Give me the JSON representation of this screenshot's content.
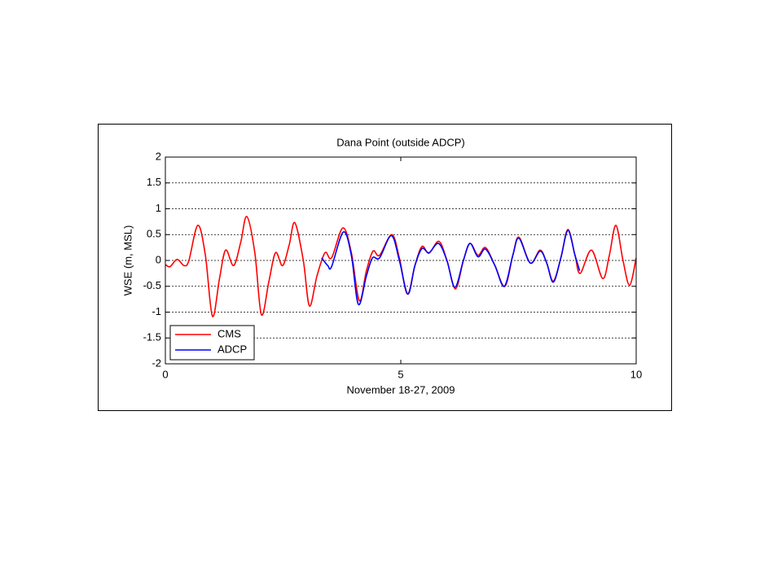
{
  "chart_data": {
    "type": "line",
    "title": "Dana Point (outside ADCP)",
    "x_label": "November 18-27, 2009",
    "y_label": "WSE (m, MSL)",
    "xlim": [
      0,
      10
    ],
    "xticks": [
      0,
      5,
      10
    ],
    "ylim": [
      -2,
      2
    ],
    "yticks": [
      -2,
      -1.5,
      -1,
      -0.5,
      0,
      0.5,
      1,
      1.5,
      2
    ],
    "grid": true,
    "legend": "lower left",
    "series": [
      {
        "name": "CMS",
        "color": "#ff0000",
        "x": [
          0,
          0.1,
          0.25,
          0.4,
          0.5,
          0.69,
          0.85,
          1.0,
          1.15,
          1.28,
          1.45,
          1.6,
          1.73,
          1.9,
          2.04,
          2.2,
          2.34,
          2.49,
          2.63,
          2.75,
          2.93,
          3.06,
          3.22,
          3.39,
          3.53,
          3.77,
          3.95,
          4.12,
          4.27,
          4.41,
          4.55,
          4.81,
          4.97,
          5.14,
          5.3,
          5.45,
          5.6,
          5.81,
          5.98,
          6.16,
          6.33,
          6.47,
          6.64,
          6.8,
          7.0,
          7.21,
          7.38,
          7.51,
          7.75,
          7.96,
          8.1,
          8.24,
          8.4,
          8.55,
          8.7,
          8.81,
          9.05,
          9.29,
          9.43,
          9.57,
          9.72,
          9.86,
          10
        ],
        "values": [
          -0.08,
          -0.12,
          0.02,
          -0.1,
          0.0,
          0.68,
          0.1,
          -1.08,
          -0.35,
          0.2,
          -0.1,
          0.35,
          0.85,
          0.15,
          -1.05,
          -0.4,
          0.15,
          -0.1,
          0.3,
          0.73,
          0.0,
          -0.88,
          -0.3,
          0.15,
          0.05,
          0.63,
          0.15,
          -0.78,
          -0.2,
          0.18,
          0.1,
          0.5,
          0.05,
          -0.65,
          -0.1,
          0.27,
          0.14,
          0.37,
          0.0,
          -0.55,
          0.0,
          0.33,
          0.1,
          0.25,
          -0.1,
          -0.5,
          0.1,
          0.45,
          -0.05,
          0.2,
          -0.05,
          -0.4,
          0.05,
          0.6,
          0.1,
          -0.25,
          0.2,
          -0.35,
          0.1,
          0.68,
          0.0,
          -0.48,
          0.05
        ]
      },
      {
        "name": "ADCP",
        "color": "#0000ff",
        "x": [
          3.32,
          3.45,
          3.53,
          3.78,
          3.95,
          4.1,
          4.27,
          4.4,
          4.55,
          4.8,
          4.97,
          5.15,
          5.3,
          5.45,
          5.6,
          5.8,
          5.98,
          6.15,
          6.33,
          6.47,
          6.64,
          6.8,
          7.0,
          7.2,
          7.38,
          7.51,
          7.75,
          7.96,
          8.1,
          8.24,
          8.4,
          8.55,
          8.7,
          8.8
        ],
        "values": [
          0.05,
          -0.1,
          -0.12,
          0.55,
          0.1,
          -0.85,
          -0.3,
          0.05,
          0.05,
          0.48,
          0.0,
          -0.65,
          -0.1,
          0.23,
          0.15,
          0.33,
          0.0,
          -0.52,
          0.0,
          0.33,
          0.07,
          0.22,
          -0.1,
          -0.5,
          0.1,
          0.43,
          -0.05,
          0.18,
          -0.05,
          -0.42,
          0.05,
          0.58,
          0.1,
          -0.2
        ]
      }
    ]
  }
}
